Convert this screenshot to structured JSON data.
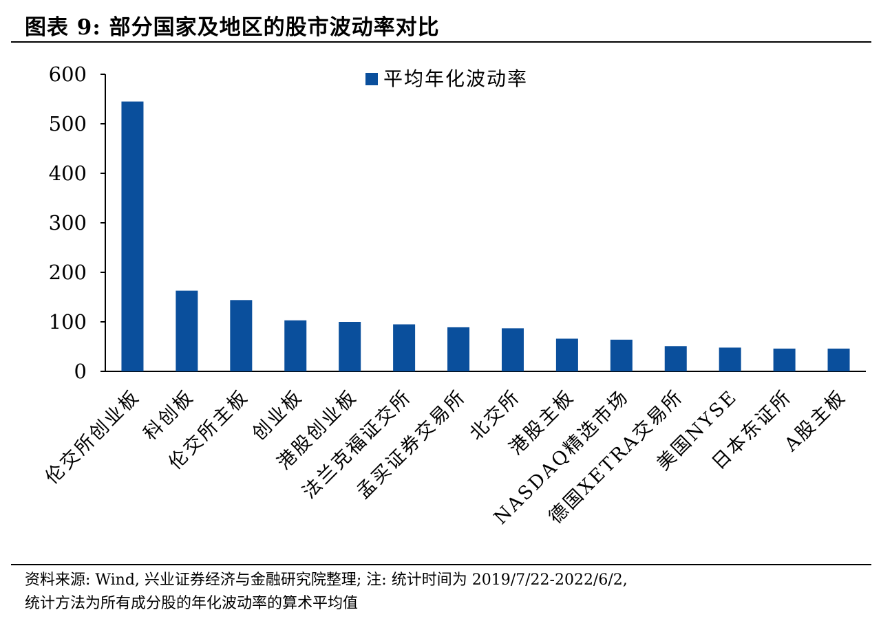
{
  "header": {
    "title": "图表 9: 部分国家及地区的股市波动率对比"
  },
  "chart_data": {
    "type": "bar",
    "categories": [
      "伦交所创业板",
      "科创板",
      "伦交所主板",
      "创业板",
      "港股创业板",
      "法兰克福证交所",
      "孟买证券交易所",
      "北交所",
      "港股主板",
      "NASDAQ精选市场",
      "德国XETRA交易所",
      "美国NYSE",
      "日本东证所",
      "A股主板"
    ],
    "series": [
      {
        "name": "平均年化波动率",
        "values": [
          545,
          163,
          144,
          103,
          100,
          95,
          89,
          87,
          66,
          64,
          51,
          48,
          46,
          46
        ]
      }
    ],
    "yticks": [
      "0",
      "100",
      "200",
      "300",
      "400",
      "500",
      "600"
    ],
    "ylim": [
      0,
      600
    ],
    "bar_color": "#0a4f9c",
    "legend_position": "top-center",
    "grid": false
  },
  "footer": {
    "source_line1": "资料来源: Wind, 兴业证券经济与金融研究院整理; 注: 统计时间为 2019/7/22-2022/6/2,",
    "source_line2": "统计方法为所有成分股的年化波动率的算术平均值"
  }
}
